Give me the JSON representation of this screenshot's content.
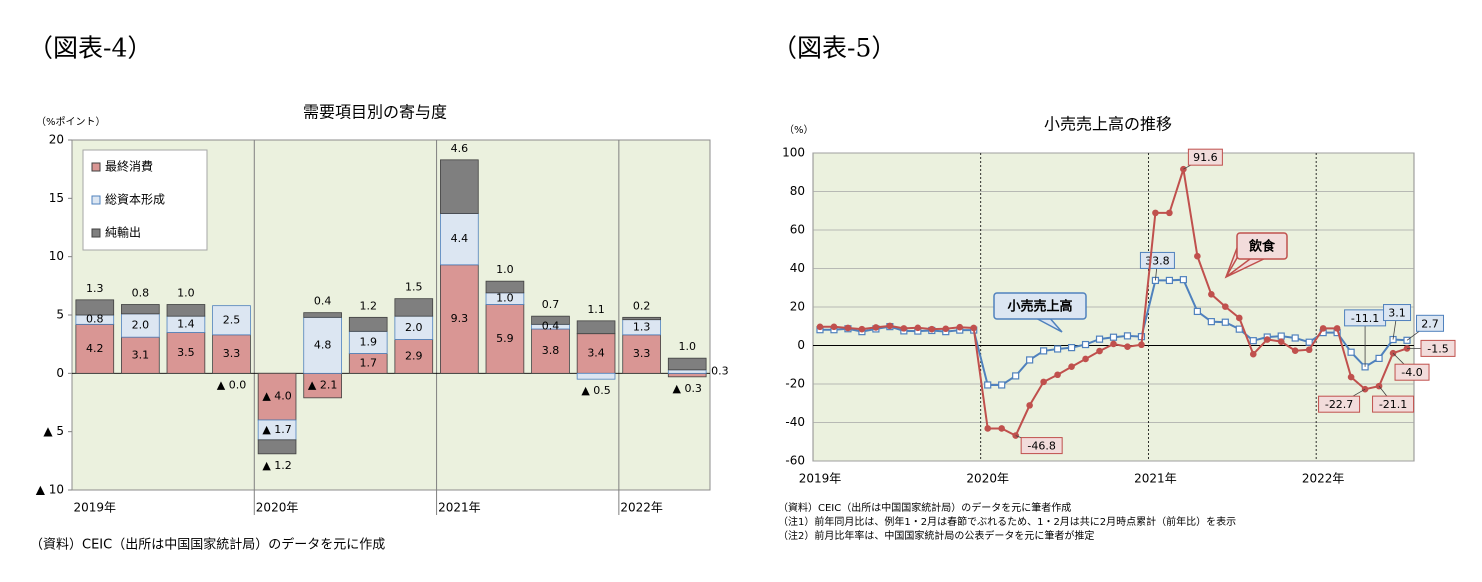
{
  "chart_data": [
    {
      "type": "bar",
      "figure_label": "（図表-4）",
      "title": "需要項目別の寄与度",
      "ylabel": "（%ポイント）",
      "note": "（資料）CEIC（出所は中国国家統計局）のデータを元に作成",
      "categories": [
        "2019年",
        null,
        null,
        null,
        "2020年",
        null,
        null,
        null,
        "2021年",
        null,
        null,
        null,
        "2022年",
        null
      ],
      "series": [
        {
          "name": "最終消費",
          "color": "#d99694",
          "values": [
            4.2,
            3.1,
            3.5,
            3.3,
            -4.0,
            -2.1,
            1.7,
            2.9,
            9.3,
            5.9,
            3.8,
            3.4,
            3.3,
            -0.3
          ],
          "value_labels": [
            "4.2",
            "3.1",
            "3.5",
            "3.3",
            "▲ 4.0",
            "▲ 2.1",
            "1.7",
            "2.9",
            "9.3",
            "5.9",
            "3.8",
            "3.4",
            "3.3",
            "▲ 0.3"
          ]
        },
        {
          "name": "総資本形成",
          "color": "#dce6f2",
          "values": [
            0.8,
            2.0,
            1.4,
            2.5,
            -1.7,
            4.8,
            1.9,
            2.0,
            4.4,
            1.0,
            0.4,
            -0.5,
            1.3,
            0.3
          ],
          "value_labels": [
            "0.8",
            "2.0",
            "1.4",
            "2.5",
            "▲ 1.7",
            "4.8",
            "1.9",
            "2.0",
            "4.4",
            "1.0",
            "0.4",
            "▲ 0.5",
            "1.3",
            "0.3"
          ]
        },
        {
          "name": "純輸出",
          "color": "#7f7f7f",
          "values": [
            1.3,
            0.8,
            1.0,
            0,
            -1.2,
            0.4,
            1.2,
            1.5,
            4.6,
            1.0,
            0.7,
            1.1,
            0.2,
            1.0
          ],
          "value_labels": [
            "1.3",
            "0.8",
            "1.0",
            "▲ 0.0",
            "▲ 1.2",
            "0.4",
            "1.2",
            "1.5",
            "4.6",
            "1.0",
            "0.7",
            "1.1",
            "0.2",
            "1.0"
          ]
        }
      ],
      "ylim": [
        -10,
        20
      ],
      "yticks": [
        {
          "value": -10,
          "label": "▲ 10"
        },
        {
          "value": -5,
          "label": "▲ 5"
        },
        0,
        5,
        10,
        15,
        20
      ],
      "grid": false,
      "legend": "upper left"
    },
    {
      "type": "line",
      "figure_label": "（図表-5）",
      "title": "小売売上高の推移",
      "ylabel": "（%）",
      "notes": [
        "（資料）CEIC（出所は中国国家統計局）のデータを元に筆者作成",
        "（注1）前年同月比は、例年1・2月は春節でぶれるため、1・2月は共に2月時点累計（前年比）を表示",
        "（注2）前月比年率は、中国国家統計局の公表データを元に筆者が推定"
      ],
      "categories": [
        "2019年",
        null,
        null,
        null,
        null,
        null,
        null,
        null,
        null,
        null,
        null,
        null,
        "2020年",
        null,
        null,
        null,
        null,
        null,
        null,
        null,
        null,
        null,
        null,
        null,
        "2021年",
        null,
        null,
        null,
        null,
        null,
        null,
        null,
        null,
        null,
        null,
        null,
        "2022年",
        null,
        null,
        null,
        null,
        null,
        null
      ],
      "series": [
        {
          "name": "小売売上高",
          "color": "#4f81bd",
          "marker": "square",
          "values": [
            8.2,
            8.2,
            8.7,
            7.2,
            8.6,
            9.8,
            7.6,
            7.5,
            7.8,
            7.2,
            8.0,
            8.0,
            -20.5,
            -20.5,
            -15.8,
            -7.5,
            -2.8,
            -1.8,
            -1.1,
            0.5,
            3.3,
            4.3,
            5.0,
            4.6,
            33.8,
            33.8,
            34.2,
            17.7,
            12.4,
            12.1,
            8.5,
            2.5,
            4.4,
            4.9,
            3.9,
            1.7,
            6.7,
            6.7,
            -3.5,
            -11.1,
            -6.7,
            3.1,
            2.7
          ],
          "value_labels": [
            null,
            null,
            null,
            null,
            null,
            null,
            null,
            null,
            null,
            null,
            null,
            null,
            null,
            null,
            null,
            null,
            null,
            null,
            null,
            null,
            null,
            null,
            null,
            null,
            "33.8",
            null,
            null,
            null,
            null,
            null,
            null,
            null,
            null,
            null,
            null,
            null,
            null,
            null,
            null,
            "-11.1",
            null,
            "3.1",
            "2.7"
          ]
        },
        {
          "name": "飲食",
          "color": "#c0504d",
          "marker": "circle",
          "values": [
            9.7,
            9.7,
            9.1,
            8.5,
            9.4,
            10.2,
            8.9,
            9.2,
            8.5,
            8.7,
            9.5,
            9.1,
            -43.1,
            -43.1,
            -46.8,
            -31.1,
            -18.9,
            -15.2,
            -11.0,
            -7.0,
            -2.9,
            0.8,
            -0.6,
            0.4,
            68.9,
            68.9,
            91.6,
            46.4,
            26.6,
            20.2,
            14.3,
            -4.5,
            3.1,
            2.0,
            -2.7,
            -2.2,
            8.9,
            8.9,
            -16.4,
            -22.7,
            -21.1,
            -4.0,
            -1.5
          ],
          "value_labels": [
            null,
            null,
            null,
            null,
            null,
            null,
            null,
            null,
            null,
            null,
            null,
            null,
            null,
            null,
            "-46.8",
            null,
            null,
            null,
            null,
            null,
            null,
            null,
            null,
            null,
            null,
            null,
            "91.6",
            null,
            null,
            null,
            null,
            null,
            null,
            null,
            null,
            null,
            null,
            null,
            null,
            "-22.7",
            "-21.1",
            "-4.0",
            "-1.5"
          ]
        }
      ],
      "ylim": [
        -60,
        100
      ],
      "yticks": [
        -60,
        -40,
        -20,
        0,
        20,
        40,
        60,
        80,
        100
      ],
      "grid": true,
      "legend": "inline"
    }
  ]
}
